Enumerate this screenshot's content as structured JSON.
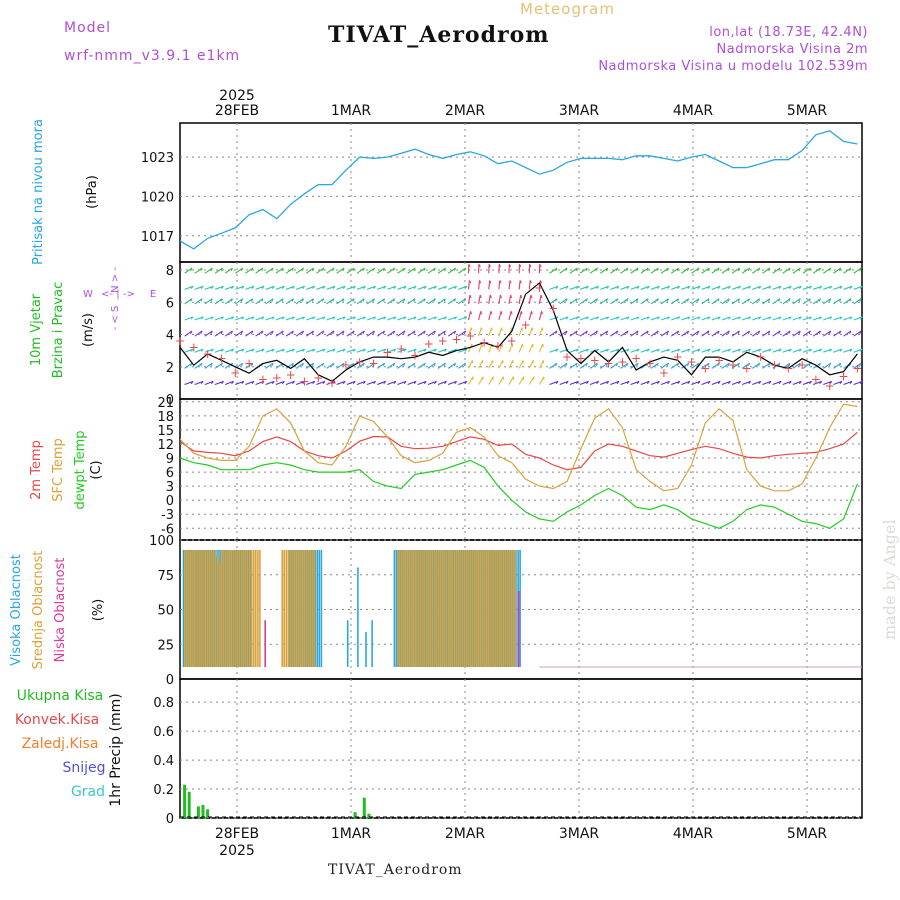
{
  "header": {
    "model_label": "Model",
    "model_name": "wrf-nmm_v3.9.1  e1km",
    "product": "Meteogram",
    "station": "TIVAT_Aerodrom",
    "location_line": "lon,lat (18.73E, 42.4N)",
    "altitude_line": "Nadmorska Visina 2m",
    "model_altitude_line": "Nadmorska Visina u modelu 102.539m",
    "credit": "made by Angel"
  },
  "colors": {
    "pressure": "#2aa6e0",
    "wind_label": "#22bb22",
    "temp2m": "#e84848",
    "sfc_temp": "#d9a23a",
    "dewpoint": "#22cc22",
    "high_cloud": "#2aa6e0",
    "mid_cloud": "#d9a23a",
    "low_cloud": "#d83aa0",
    "total_precip": "#22bb22",
    "conv_precip": "#e84848",
    "frz_precip": "#f08030",
    "snow": "#5050e0",
    "hail": "#3ac8c8",
    "grid": "#888888"
  },
  "chart_data": [
    {
      "type": "line",
      "name": "pressure",
      "ylabel_main": "Pritisak na nivou mora",
      "unit": "(hPa)",
      "x_top_year": "2025",
      "x_ticks": [
        "28FEB",
        "1MAR",
        "2MAR",
        "3MAR",
        "4MAR",
        "5MAR"
      ],
      "y_ticks": [
        "1017",
        "1020",
        "1023"
      ],
      "ylim": [
        1015.0,
        1025.6
      ],
      "hours": [
        0,
        3,
        6,
        9,
        12,
        15,
        18,
        21,
        24,
        27,
        30,
        33,
        36,
        39,
        42,
        45,
        48,
        51,
        54,
        57,
        60,
        63,
        66,
        69,
        72,
        75,
        78,
        81,
        84,
        87,
        90,
        93,
        96,
        99,
        102,
        105,
        108,
        111,
        114,
        117,
        120,
        123,
        126,
        129,
        132,
        135,
        138,
        141,
        144,
        147
      ],
      "values": [
        1016.6,
        1016.0,
        1016.8,
        1017.2,
        1017.6,
        1018.6,
        1019.0,
        1018.3,
        1019.4,
        1020.2,
        1020.9,
        1020.9,
        1022.0,
        1023.0,
        1022.9,
        1023.0,
        1023.3,
        1023.6,
        1023.2,
        1022.9,
        1023.2,
        1023.4,
        1023.1,
        1022.5,
        1022.7,
        1022.2,
        1021.7,
        1022.0,
        1022.6,
        1022.9,
        1022.9,
        1022.9,
        1022.8,
        1023.1,
        1023.1,
        1022.9,
        1022.7,
        1023.0,
        1023.2,
        1022.7,
        1022.2,
        1022.2,
        1022.5,
        1022.8,
        1022.8,
        1023.5,
        1024.7,
        1025.0,
        1024.2,
        1024.0
      ]
    },
    {
      "type": "scatter",
      "name": "wind",
      "ylabel_main": "10m Vjetar",
      "ylabel_sub": "Brzina i Pravac",
      "unit": "(m/s)",
      "compass": [
        "N",
        "E",
        "S",
        "W"
      ],
      "y_ticks": [
        "0",
        "2",
        "4",
        "6",
        "8"
      ],
      "ylim": [
        0,
        8.5
      ],
      "hours": [
        0,
        3,
        6,
        9,
        12,
        15,
        18,
        21,
        24,
        27,
        30,
        33,
        36,
        39,
        42,
        45,
        48,
        51,
        54,
        57,
        60,
        63,
        66,
        69,
        72,
        75,
        78,
        81,
        84,
        87,
        90,
        93,
        96,
        99,
        102,
        105,
        108,
        111,
        114,
        117,
        120,
        123,
        126,
        129,
        132,
        135,
        138,
        141,
        144,
        147
      ],
      "speed": [
        3.2,
        2.1,
        2.8,
        2.4,
        2.0,
        1.6,
        2.2,
        2.4,
        1.9,
        2.5,
        1.5,
        1.1,
        1.8,
        2.3,
        2.6,
        2.6,
        2.5,
        2.6,
        2.9,
        2.7,
        3.0,
        3.2,
        3.5,
        3.2,
        4.2,
        6.5,
        7.2,
        5.5,
        3.0,
        2.2,
        3.0,
        2.3,
        3.2,
        1.8,
        2.3,
        2.6,
        2.4,
        1.5,
        2.6,
        2.6,
        2.3,
        2.9,
        2.6,
        2.1,
        1.9,
        2.5,
        2.1,
        1.5,
        1.7,
        2.8
      ],
      "gust": [
        3.6,
        3.2,
        2.8,
        2.5,
        1.6,
        2.2,
        1.2,
        1.3,
        1.5,
        1.1,
        1.3,
        1.0,
        2.1,
        2.3,
        2.2,
        2.9,
        3.1,
        2.7,
        3.4,
        3.6,
        3.7,
        3.9,
        3.5,
        3.3,
        3.6,
        4.6,
        6.9,
        5.6,
        2.6,
        2.5,
        2.4,
        2.2,
        2.3,
        2.5,
        2.2,
        1.6,
        2.6,
        2.3,
        1.9,
        2.4,
        2.1,
        1.9,
        2.6,
        2.1,
        1.9,
        2.1,
        1.2,
        0.8,
        1.4,
        1.9
      ],
      "arrow_rows": [
        0.9,
        1.9,
        2.9,
        3.9,
        4.9,
        5.9,
        6.8,
        7.8
      ]
    },
    {
      "type": "line",
      "name": "temperature",
      "ylabel_main": "2m Temp",
      "ylabel_mid": "SFC Temp",
      "ylabel_sub": "dewpt Temp",
      "unit": "(C)",
      "y_ticks": [
        "-6",
        "-3",
        "0",
        "3",
        "6",
        "9",
        "12",
        "15",
        "18",
        "21"
      ],
      "ylim": [
        -8.5,
        21.6
      ],
      "hours": [
        0,
        3,
        6,
        9,
        12,
        15,
        18,
        21,
        24,
        27,
        30,
        33,
        36,
        39,
        42,
        45,
        48,
        51,
        54,
        57,
        60,
        63,
        66,
        69,
        72,
        75,
        78,
        81,
        84,
        87,
        90,
        93,
        96,
        99,
        102,
        105,
        108,
        111,
        114,
        117,
        120,
        123,
        126,
        129,
        132,
        135,
        138,
        141,
        144,
        147
      ],
      "series": [
        {
          "key": "t2m",
          "values": [
            12.5,
            10.5,
            10.2,
            10.0,
            9.5,
            10.5,
            12.5,
            13.5,
            12.5,
            10.5,
            9.5,
            9.0,
            10.5,
            12.6,
            13.6,
            13.5,
            11.5,
            11.0,
            11.1,
            11.5,
            12.5,
            13.5,
            13.0,
            11.7,
            12.0,
            9.8,
            9.0,
            7.5,
            6.5,
            7.0,
            10.5,
            12.0,
            11.5,
            10.5,
            9.5,
            9.2,
            10.0,
            10.8,
            11.5,
            11.0,
            10.0,
            9.2,
            9.0,
            9.5,
            9.8,
            10.0,
            10.2,
            11.0,
            12.0,
            14.5
          ]
        },
        {
          "key": "sfc",
          "values": [
            13.0,
            10.0,
            9.0,
            8.5,
            8.5,
            11.5,
            18.0,
            19.5,
            16.5,
            10.5,
            8.0,
            7.5,
            11.5,
            18.0,
            16.8,
            13.5,
            9.5,
            8.0,
            8.5,
            10.0,
            14.5,
            15.5,
            13.5,
            9.5,
            8.0,
            4.5,
            3.0,
            2.5,
            4.0,
            11.0,
            17.5,
            19.5,
            15.5,
            6.5,
            4.0,
            2.0,
            2.5,
            7.5,
            16.5,
            19.5,
            17.0,
            6.5,
            3.0,
            2.0,
            2.0,
            3.5,
            9.0,
            15.5,
            20.5,
            20.0
          ]
        },
        {
          "key": "dewpt",
          "values": [
            9.0,
            8.0,
            7.5,
            6.5,
            6.5,
            6.5,
            7.5,
            8.0,
            7.5,
            6.5,
            6.0,
            6.0,
            6.0,
            6.5,
            4.0,
            3.0,
            2.5,
            5.5,
            6.0,
            6.5,
            7.5,
            8.5,
            7.0,
            3.0,
            0.0,
            -2.5,
            -4.0,
            -4.5,
            -2.5,
            -1.0,
            1.0,
            2.5,
            1.0,
            -1.5,
            -2.0,
            -1.0,
            -2.0,
            -4.0,
            -5.0,
            -6.0,
            -4.5,
            -2.0,
            -1.0,
            -1.5,
            -3.0,
            -4.5,
            -5.0,
            -6.0,
            -4.0,
            3.5
          ]
        }
      ]
    },
    {
      "type": "bar",
      "name": "cloud_cover",
      "ylabel_main": "Visoka Oblacnost",
      "ylabel_mid": "Srednja Oblacnost",
      "ylabel_sub": "Niska Oblacnost",
      "unit": "(%)",
      "y_ticks": [
        "0",
        "25",
        "50",
        "75",
        "100"
      ],
      "ylim": [
        0,
        100
      ],
      "bar_spacing_hours": 1,
      "series": [
        {
          "key": "high",
          "values": [
            100,
            100,
            100,
            100,
            100,
            100,
            100,
            100,
            100,
            100,
            100,
            100,
            100,
            100,
            100,
            100,
            100,
            100,
            100,
            100,
            100,
            100,
            100,
            100,
            100,
            100,
            100,
            100,
            100,
            100,
            100,
            100,
            100,
            100,
            0,
            0,
            0,
            0,
            0,
            0,
            0,
            0,
            0,
            0,
            0,
            0,
            0,
            0,
            0,
            0,
            0,
            0,
            100,
            100,
            100,
            100,
            100,
            100,
            100,
            100,
            100,
            100,
            100,
            100,
            100,
            100,
            100,
            100,
            100,
            0,
            0,
            0,
            0,
            0,
            0,
            0,
            0,
            0,
            0,
            0,
            0,
            40,
            0,
            0,
            0,
            0,
            85,
            0,
            0,
            0,
            30,
            0,
            0,
            40,
            0,
            0,
            0,
            0,
            0,
            0,
            0,
            0,
            0,
            0,
            100,
            100,
            100,
            100,
            100,
            100,
            100,
            100,
            100,
            100,
            100,
            100,
            100,
            100,
            100,
            100,
            100,
            100,
            100,
            100,
            100,
            100,
            100,
            100,
            100,
            100,
            100,
            100,
            100,
            100,
            100,
            100,
            100,
            100,
            100,
            100,
            100,
            100,
            100,
            100,
            100,
            100,
            100,
            100,
            100,
            100,
            100,
            100,
            100,
            100,
            100,
            100,
            100,
            100,
            100,
            100,
            100,
            100,
            100,
            100,
            100,
            100,
            100
          ]
        },
        {
          "key": "mid",
          "values": [
            100,
            100,
            100,
            100,
            100,
            100,
            100,
            100,
            100,
            100,
            100,
            100,
            100,
            100,
            100,
            100,
            95,
            90,
            100,
            100,
            100,
            100,
            100,
            100,
            100,
            100,
            100,
            100,
            100,
            100,
            100,
            100,
            100,
            100,
            100,
            100,
            100,
            100,
            0,
            0,
            0,
            0,
            0,
            0,
            0,
            0,
            0,
            0,
            100,
            100,
            100,
            100,
            100,
            100,
            100,
            100,
            100,
            100,
            100,
            100,
            100,
            100,
            100,
            100,
            100,
            0,
            0,
            0,
            0,
            0,
            0,
            0,
            0,
            0,
            0,
            0,
            0,
            0,
            0,
            0,
            0,
            0,
            0,
            0,
            0,
            0,
            0,
            0,
            0,
            0,
            0,
            0,
            0,
            0,
            0,
            0,
            0,
            0,
            0,
            0,
            0,
            0,
            0,
            0,
            0,
            100,
            100,
            100,
            100,
            100,
            100,
            100,
            100,
            100,
            100,
            100,
            100,
            100,
            100,
            100,
            100,
            100,
            100,
            100,
            100,
            100,
            100,
            100,
            100,
            100,
            100,
            100,
            100,
            100,
            100,
            100,
            100,
            100,
            100,
            100,
            100,
            100,
            100,
            100,
            100,
            100,
            100,
            100,
            100,
            100,
            100,
            100,
            100,
            100,
            100,
            100,
            100,
            100,
            100,
            100,
            100,
            100,
            100,
            100
          ]
        },
        {
          "key": "low",
          "values": [
            0,
            0,
            0,
            0,
            0,
            0,
            0,
            0,
            0,
            0,
            0,
            0,
            0,
            0,
            0,
            0,
            0,
            0,
            0,
            0,
            0,
            0,
            0,
            0,
            0,
            0,
            0,
            0,
            0,
            0,
            0,
            0,
            0,
            0,
            0,
            0,
            0,
            0,
            0,
            40,
            0,
            0,
            0,
            0,
            0,
            0,
            0,
            0,
            0,
            0,
            0,
            0,
            0,
            0,
            0,
            0,
            0,
            0,
            0,
            0,
            0,
            0,
            0,
            0,
            0,
            0,
            0,
            0,
            0,
            0,
            0,
            0,
            0,
            0,
            0,
            0,
            0,
            0,
            0,
            0,
            0,
            0,
            0,
            0,
            0,
            0,
            0,
            0,
            0,
            0,
            0,
            0,
            0,
            0,
            0,
            0,
            0,
            0,
            0,
            0,
            0,
            0,
            0,
            0,
            0,
            0,
            0,
            0,
            0,
            0,
            0,
            0,
            0,
            0,
            0,
            0,
            0,
            0,
            0,
            0,
            0,
            0,
            0,
            0,
            0,
            0,
            0,
            0,
            0,
            0,
            0,
            0,
            0,
            0,
            0,
            0,
            0,
            0,
            0,
            0,
            0,
            0,
            0,
            0,
            0,
            0,
            0,
            0,
            0,
            0,
            0,
            0,
            0,
            0,
            0,
            0,
            0,
            0,
            0,
            0,
            0,
            0,
            0,
            0,
            65
          ]
        }
      ]
    },
    {
      "type": "bar",
      "name": "precipitation",
      "ylabel_main": "1hr Precip",
      "unit": "(mm)",
      "legend": [
        "Ukupna Kisa",
        "Konvek.Kisa",
        "Zaledj.Kisa",
        "Snijeg",
        "Grad"
      ],
      "y_ticks": [
        "0",
        "0.2",
        "0.4",
        "0.6",
        "0.8"
      ],
      "ylim": [
        0,
        0.96
      ],
      "x_bottom_year": "2025",
      "hours": [
        1,
        2,
        4,
        5,
        6,
        38,
        40,
        41
      ],
      "values": [
        0.23,
        0.18,
        0.08,
        0.09,
        0.06,
        0.04,
        0.14,
        0.03
      ]
    }
  ],
  "footer": {
    "station": "TIVAT_Aerodrom"
  }
}
